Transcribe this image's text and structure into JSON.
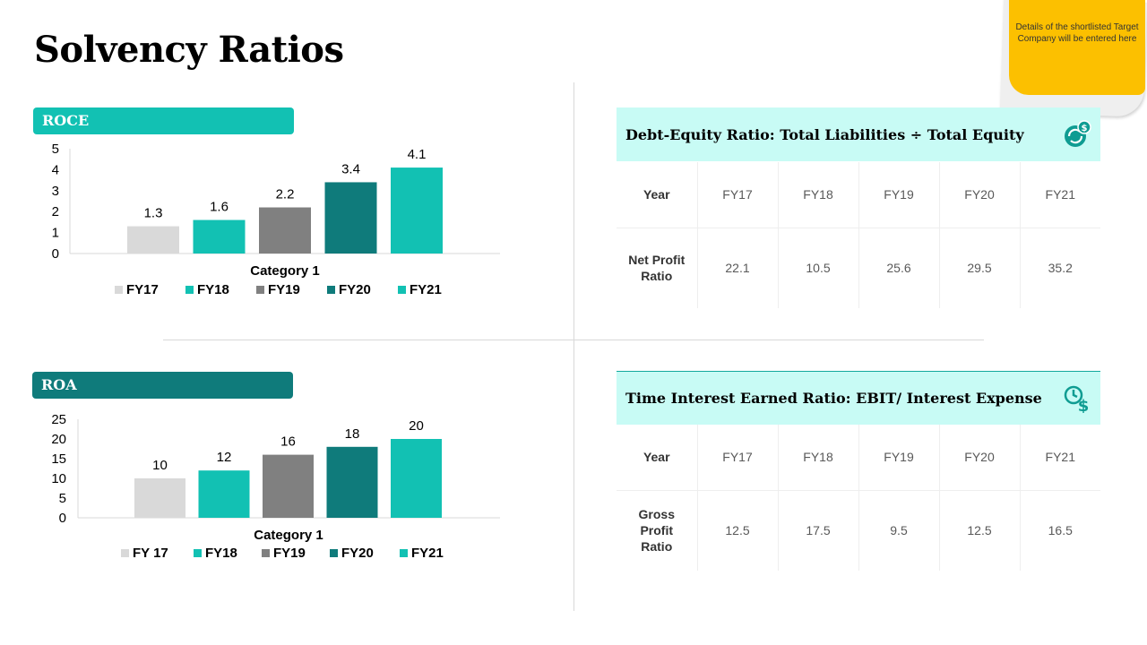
{
  "page": {
    "title": "Solvency Ratios",
    "sticky_note": "Details of the shortlisted Target Company will be entered here"
  },
  "colors": {
    "light_grey": "#d9d9d9",
    "teal": "#12c1b3",
    "grey": "#808080",
    "dark_teal": "#0f7b7b",
    "table_header_bg": "#c8fbf5",
    "sticky": "#fcc000"
  },
  "chart_data": [
    {
      "type": "bar",
      "title": "ROCE",
      "categories": [
        "Category 1"
      ],
      "series": [
        {
          "name": "FY17",
          "values": [
            1.3
          ],
          "color": "#d9d9d9"
        },
        {
          "name": "FY18",
          "values": [
            1.6
          ],
          "color": "#12c1b3"
        },
        {
          "name": "FY19",
          "values": [
            2.2
          ],
          "color": "#808080"
        },
        {
          "name": "FY20",
          "values": [
            3.4
          ],
          "color": "#0f7b7b"
        },
        {
          "name": "FY21",
          "values": [
            4.1
          ],
          "color": "#12c1b3"
        }
      ],
      "yticks": [
        0,
        1,
        2,
        3,
        4,
        5
      ],
      "ylim": [
        0,
        5
      ],
      "xlabel": "",
      "ylabel": "",
      "legend": "bottom",
      "grid": false
    },
    {
      "type": "bar",
      "title": "ROA",
      "categories": [
        "Category 1"
      ],
      "series": [
        {
          "name": "FY 17",
          "values": [
            10
          ],
          "color": "#d9d9d9"
        },
        {
          "name": "FY18",
          "values": [
            12
          ],
          "color": "#12c1b3"
        },
        {
          "name": "FY19",
          "values": [
            16
          ],
          "color": "#808080"
        },
        {
          "name": "FY20",
          "values": [
            18
          ],
          "color": "#0f7b7b"
        },
        {
          "name": "FY21",
          "values": [
            20
          ],
          "color": "#12c1b3"
        }
      ],
      "yticks": [
        0,
        5,
        10,
        15,
        20,
        25
      ],
      "ylim": [
        0,
        25
      ],
      "xlabel": "",
      "ylabel": "",
      "legend": "bottom",
      "grid": false
    }
  ],
  "tables": [
    {
      "title": "Debt-Equity Ratio: Total Liabilities ÷ Total Equity",
      "icon": "money-cycle-icon",
      "header": [
        "Year",
        "FY17",
        "FY18",
        "FY19",
        "FY20",
        "FY21"
      ],
      "row": [
        "Net Profit Ratio",
        "22.1",
        "10.5",
        "25.6",
        "29.5",
        "35.2"
      ]
    },
    {
      "title": "Time Interest Earned Ratio: EBIT/ Interest Expense",
      "icon": "time-money-icon",
      "header": [
        "Year",
        "FY17",
        "FY18",
        "FY19",
        "FY20",
        "FY21"
      ],
      "row": [
        "Gross Profit Ratio",
        "12.5",
        "17.5",
        "9.5",
        "12.5",
        "16.5"
      ]
    }
  ]
}
